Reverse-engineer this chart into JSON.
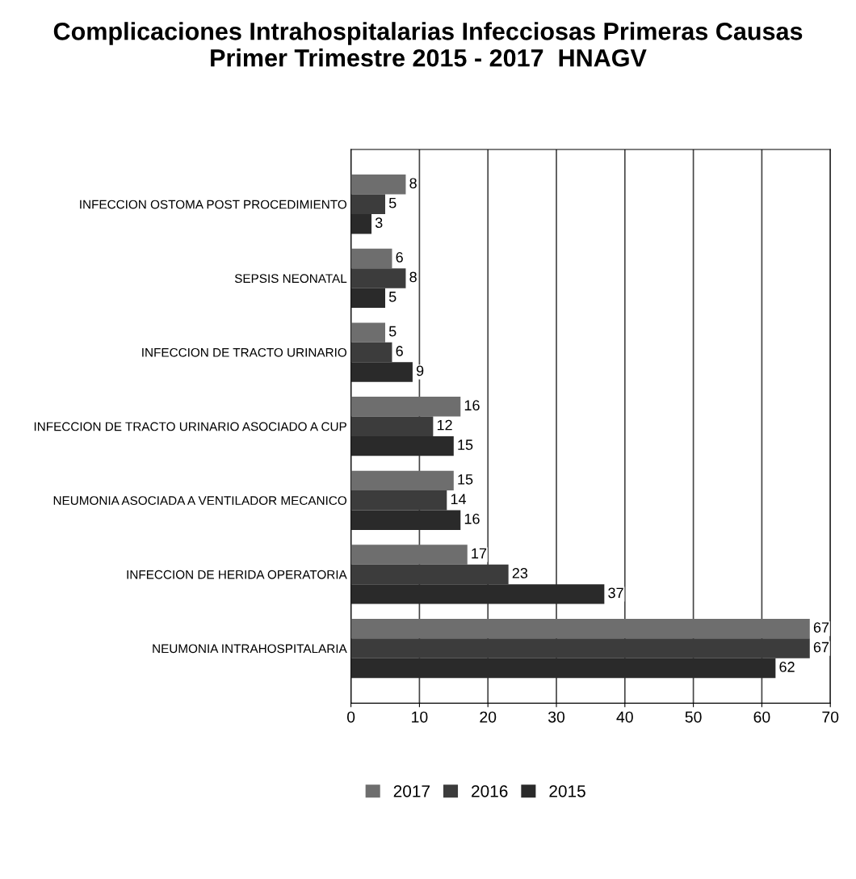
{
  "chart_data": {
    "type": "bar",
    "orientation": "horizontal",
    "title": "Complicaciones Intrahospitalarias Infecciosas Primeras Causas\nPrimer Trimestre 2015 - 2017  HNAGV",
    "categories": [
      "INFECCION OSTOMA POST PROCEDIMIENTO",
      "SEPSIS NEONATAL",
      "INFECCION DE TRACTO URINARIO",
      "INFECCION DE TRACTO URINARIO ASOCIADO A CUP",
      "NEUMONIA ASOCIADA A VENTILADOR MECANICO",
      "INFECCION DE HERIDA OPERATORIA",
      "NEUMONIA INTRAHOSPITALARIA"
    ],
    "series": [
      {
        "name": "2017",
        "color": "#6e6e6e",
        "values": [
          8,
          6,
          5,
          16,
          15,
          17,
          67
        ]
      },
      {
        "name": "2016",
        "color": "#3c3c3c",
        "values": [
          5,
          8,
          6,
          12,
          14,
          23,
          67
        ]
      },
      {
        "name": "2015",
        "color": "#2a2a2a",
        "values": [
          3,
          5,
          9,
          15,
          16,
          37,
          62
        ]
      }
    ],
    "xlim": [
      0,
      70
    ],
    "xticks": [
      0,
      10,
      20,
      30,
      40,
      50,
      60,
      70
    ],
    "grid": "x",
    "legend": "bottom",
    "data_labels": true
  }
}
